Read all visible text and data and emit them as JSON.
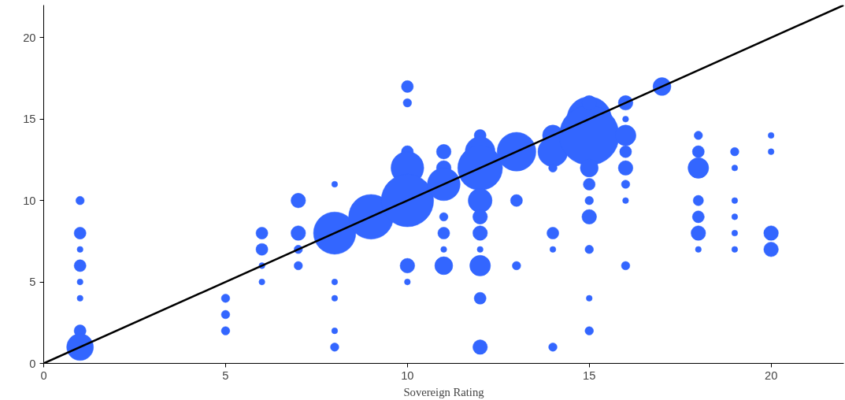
{
  "chart_data": {
    "type": "bubble",
    "xlabel": "Sovereign Rating",
    "xlim": [
      0,
      22
    ],
    "ylim": [
      0,
      22
    ],
    "xticks": [
      0,
      5,
      10,
      15,
      20
    ],
    "yticks": [
      0,
      5,
      10,
      15,
      20
    ],
    "grid": false,
    "series": [
      {
        "color": "#3366ff",
        "x": [
          1,
          1,
          1,
          1,
          1,
          1,
          1,
          1,
          5,
          5,
          5,
          6,
          6,
          6,
          6,
          7,
          7,
          7,
          7,
          8,
          8,
          8,
          8,
          8,
          8,
          9,
          10,
          10,
          10,
          10,
          10,
          10,
          10,
          11,
          11,
          11,
          11,
          11,
          11,
          11,
          12,
          12,
          12,
          12,
          12,
          12,
          12,
          12,
          12,
          12,
          13,
          13,
          13,
          14,
          14,
          14,
          14,
          14,
          14,
          15,
          15,
          15,
          15,
          15,
          15,
          15,
          15,
          15,
          15,
          16,
          16,
          16,
          16,
          16,
          16,
          16,
          16,
          17,
          18,
          18,
          18,
          18,
          18,
          18,
          18,
          19,
          19,
          19,
          19,
          19,
          19,
          20,
          20,
          20,
          20
        ],
        "values": [
          10,
          8,
          7,
          6,
          5,
          4,
          2,
          1,
          4,
          3,
          2,
          8,
          7,
          6,
          5,
          10,
          8,
          7,
          6,
          11,
          8,
          5,
          4,
          2,
          1,
          9,
          17,
          16,
          13,
          12,
          10,
          6,
          5,
          13,
          12,
          11,
          9,
          8,
          7,
          6,
          14,
          13,
          12,
          10,
          9,
          8,
          7,
          6,
          4,
          1,
          13,
          10,
          6,
          14,
          13,
          12,
          8,
          7,
          1,
          15,
          14,
          16,
          12,
          11,
          10,
          9,
          7,
          4,
          2,
          16,
          15,
          14,
          13,
          12,
          11,
          10,
          6,
          17,
          14,
          13,
          12,
          10,
          9,
          8,
          7,
          13,
          12,
          10,
          9,
          8,
          7,
          14,
          13,
          8,
          7
        ],
        "sizes": [
          0.02,
          0.04,
          0.01,
          0.04,
          0.01,
          0.01,
          0.04,
          0.2,
          0.02,
          0.02,
          0.02,
          0.04,
          0.04,
          0.01,
          0.01,
          0.06,
          0.06,
          0.02,
          0.02,
          0.01,
          0.5,
          0.01,
          0.01,
          0.01,
          0.02,
          0.56,
          0.04,
          0.02,
          0.04,
          0.3,
          0.77,
          0.06,
          0.01,
          0.06,
          0.06,
          0.3,
          0.02,
          0.04,
          0.01,
          0.09,
          0.04,
          0.25,
          0.56,
          0.16,
          0.06,
          0.06,
          0.01,
          0.12,
          0.04,
          0.06,
          0.42,
          0.04,
          0.02,
          0.12,
          0.25,
          0.02,
          0.04,
          0.01,
          0.02,
          0.56,
          1,
          0.06,
          0.09,
          0.04,
          0.02,
          0.06,
          0.02,
          0.01,
          0.02,
          0.06,
          0.01,
          0.12,
          0.04,
          0.06,
          0.02,
          0.01,
          0.02,
          0.09,
          0.02,
          0.04,
          0.12,
          0.03,
          0.04,
          0.06,
          0.01,
          0.02,
          0.01,
          0.01,
          0.01,
          0.01,
          0.01,
          0.01,
          0.01,
          0.06,
          0.06
        ]
      },
      {
        "type": "line",
        "color": "#000000",
        "x": [
          0,
          22
        ],
        "values": [
          0,
          22
        ],
        "line_style": "solid"
      }
    ]
  }
}
